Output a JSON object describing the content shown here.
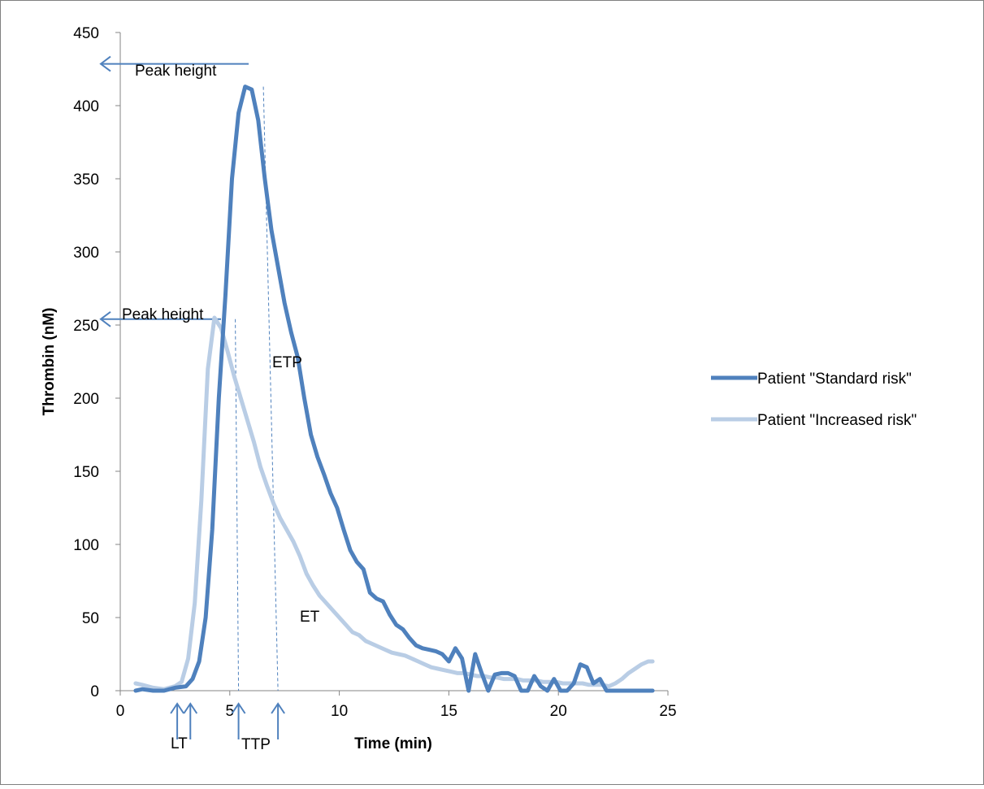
{
  "chart_data": {
    "type": "line",
    "xlabel": "Time (min)",
    "ylabel": "Thrombin (nM)",
    "xlim": [
      0,
      25
    ],
    "ylim": [
      0,
      450
    ],
    "xticks": [
      "0",
      "5",
      "10",
      "15",
      "20",
      "25"
    ],
    "yticks": [
      "0",
      "50",
      "100",
      "150",
      "200",
      "250",
      "300",
      "350",
      "400",
      "450"
    ],
    "grid": false,
    "legend_position": "right",
    "series": [
      {
        "name": "Patient \"Standard risk\"",
        "color": "#4F81BD",
        "x": [
          0.7,
          1.0,
          1.5,
          2.0,
          2.5,
          3.0,
          3.3,
          3.6,
          3.9,
          4.2,
          4.5,
          4.8,
          5.1,
          5.4,
          5.7,
          6.0,
          6.3,
          6.6,
          6.9,
          7.2,
          7.5,
          7.8,
          8.1,
          8.4,
          8.7,
          9.0,
          9.3,
          9.6,
          9.9,
          10.2,
          10.5,
          10.8,
          11.1,
          11.4,
          11.7,
          12.0,
          12.3,
          12.6,
          12.9,
          13.2,
          13.5,
          13.8,
          14.1,
          14.4,
          14.7,
          15.0,
          15.3,
          15.6,
          15.9,
          16.2,
          16.5,
          16.8,
          17.1,
          17.4,
          17.7,
          18.0,
          18.3,
          18.6,
          18.9,
          19.2,
          19.5,
          19.8,
          20.1,
          20.4,
          20.7,
          21.0,
          21.3,
          21.6,
          21.9,
          22.2,
          22.5,
          22.8,
          23.1,
          23.4,
          23.7,
          24.0,
          24.3
        ],
        "y": [
          0,
          1,
          0,
          0,
          2,
          3,
          8,
          20,
          50,
          110,
          200,
          270,
          350,
          395,
          413,
          411,
          390,
          350,
          315,
          290,
          265,
          245,
          228,
          200,
          175,
          160,
          148,
          135,
          125,
          110,
          96,
          88,
          83,
          67,
          63,
          61,
          52,
          45,
          42,
          36,
          31,
          29,
          28,
          27,
          25,
          20,
          29,
          22,
          0,
          25,
          12,
          0,
          11,
          12,
          12,
          10,
          0,
          0,
          10,
          3,
          0,
          8,
          0,
          0,
          5,
          18,
          16,
          5,
          8,
          0,
          0,
          0,
          0,
          0,
          0,
          0,
          0
        ]
      },
      {
        "name": "Patient \"Increased risk\"",
        "color": "#B9CDE5",
        "x": [
          0.7,
          1.0,
          1.5,
          2.0,
          2.5,
          2.8,
          3.1,
          3.4,
          3.7,
          4.0,
          4.3,
          4.6,
          4.9,
          5.2,
          5.5,
          5.8,
          6.1,
          6.4,
          6.7,
          7.0,
          7.3,
          7.6,
          7.9,
          8.2,
          8.5,
          8.8,
          9.1,
          9.4,
          9.7,
          10.0,
          10.3,
          10.6,
          10.9,
          11.2,
          11.5,
          11.8,
          12.1,
          12.4,
          12.7,
          13.0,
          13.3,
          13.6,
          13.9,
          14.2,
          14.5,
          14.8,
          15.1,
          15.4,
          15.7,
          16.0,
          16.3,
          16.6,
          16.9,
          17.2,
          17.5,
          17.8,
          18.1,
          18.4,
          18.7,
          19.0,
          19.3,
          19.6,
          19.9,
          20.2,
          20.5,
          20.8,
          21.1,
          21.4,
          21.7,
          22.0,
          22.3,
          22.6,
          22.9,
          23.2,
          23.5,
          23.8,
          24.1,
          24.3
        ],
        "y": [
          5,
          4,
          2,
          1,
          3,
          6,
          22,
          60,
          130,
          220,
          255,
          248,
          232,
          215,
          200,
          185,
          170,
          153,
          140,
          128,
          118,
          110,
          102,
          92,
          80,
          72,
          65,
          60,
          55,
          50,
          45,
          40,
          38,
          34,
          32,
          30,
          28,
          26,
          25,
          24,
          22,
          20,
          18,
          16,
          15,
          14,
          13,
          12,
          12,
          11,
          10,
          10,
          9,
          9,
          8,
          8,
          8,
          7,
          7,
          7,
          6,
          6,
          6,
          5,
          5,
          5,
          5,
          4,
          4,
          4,
          3,
          5,
          8,
          12,
          15,
          18,
          20,
          20
        ]
      }
    ],
    "annotations": {
      "peak_height_standard": {
        "text": "Peak height",
        "y": 413
      },
      "peak_height_increased": {
        "text": "Peak height",
        "y": 254
      },
      "ttp_standard_x": 7.2,
      "ttp_increased_x": 5.4,
      "lt_x": [
        2.6,
        3.2
      ],
      "etp": "ETP",
      "et": "ET",
      "lt": "LT",
      "ttp": "TTP"
    }
  }
}
